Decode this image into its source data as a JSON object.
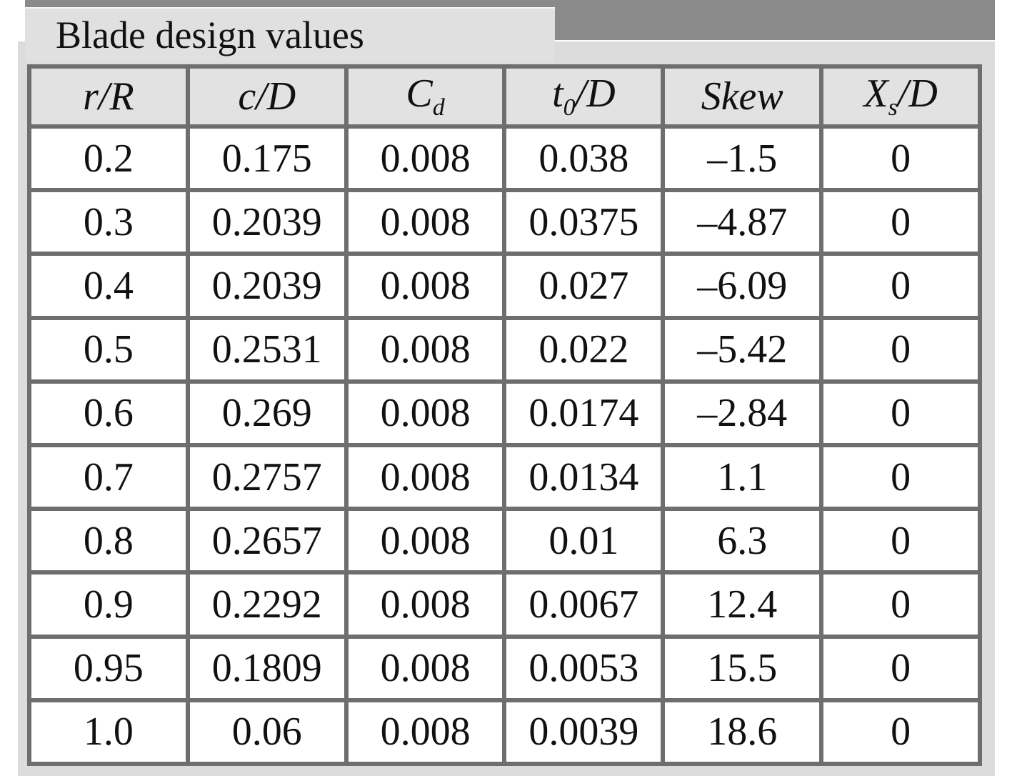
{
  "title": "Blade design values",
  "table": {
    "header": [
      {
        "base": "r/R"
      },
      {
        "base": "c/D"
      },
      {
        "base": "C",
        "sub": "d"
      },
      {
        "base": "t",
        "sub": "0",
        "suffix": "/D"
      },
      {
        "base": "Skew"
      },
      {
        "base": "X",
        "sub": "s",
        "suffix": "/D"
      }
    ],
    "rows": [
      [
        "0.2",
        "0.175",
        "0.008",
        "0.038",
        "–1.5",
        "0"
      ],
      [
        "0.3",
        "0.2039",
        "0.008",
        "0.0375",
        "–4.87",
        "0"
      ],
      [
        "0.4",
        "0.2039",
        "0.008",
        "0.027",
        "–6.09",
        "0"
      ],
      [
        "0.5",
        "0.2531",
        "0.008",
        "0.022",
        "–5.42",
        "0"
      ],
      [
        "0.6",
        "0.269",
        "0.008",
        "0.0174",
        "–2.84",
        "0"
      ],
      [
        "0.7",
        "0.2757",
        "0.008",
        "0.0134",
        "1.1",
        "0"
      ],
      [
        "0.8",
        "0.2657",
        "0.008",
        "0.01",
        "6.3",
        "0"
      ],
      [
        "0.9",
        "0.2292",
        "0.008",
        "0.0067",
        "12.4",
        "0"
      ],
      [
        "0.95",
        "0.1809",
        "0.008",
        "0.0053",
        "15.5",
        "0"
      ],
      [
        "1.0",
        "0.06",
        "0.008",
        "0.0039",
        "18.6",
        "0"
      ]
    ]
  }
}
